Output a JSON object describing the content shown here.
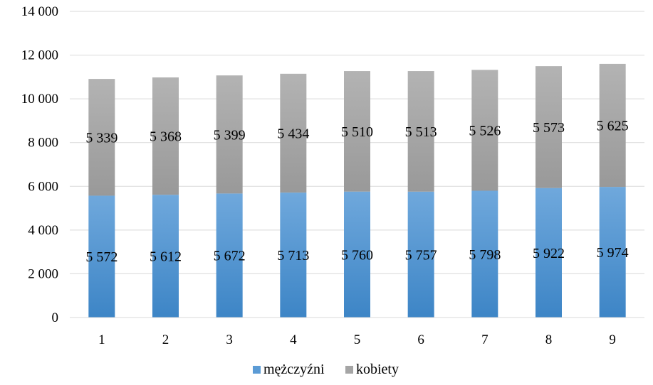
{
  "chart_data": {
    "type": "bar",
    "stacked": true,
    "categories": [
      "1",
      "2",
      "3",
      "4",
      "5",
      "6",
      "7",
      "8",
      "9"
    ],
    "series": [
      {
        "name": "mężczyźni",
        "color": "#5b9bd5",
        "values": [
          5572,
          5612,
          5672,
          5713,
          5760,
          5757,
          5798,
          5922,
          5974
        ],
        "labels": [
          "5 572",
          "5 612",
          "5 672",
          "5 713",
          "5 760",
          "5 757",
          "5 798",
          "5 922",
          "5 974"
        ]
      },
      {
        "name": "kobiety",
        "color": "#a5a5a5",
        "values": [
          5339,
          5368,
          5399,
          5434,
          5510,
          5513,
          5526,
          5573,
          5625
        ],
        "labels": [
          "5 339",
          "5 368",
          "5 399",
          "5 434",
          "5 510",
          "5 513",
          "5 526",
          "5 573",
          "5 625"
        ]
      }
    ],
    "ylim": [
      0,
      14000
    ],
    "yticks": [
      0,
      2000,
      4000,
      6000,
      8000,
      10000,
      12000,
      14000
    ],
    "ytick_labels": [
      "0",
      "2 000",
      "4 000",
      "6 000",
      "8 000",
      "10 000",
      "12 000",
      "14 000"
    ],
    "grid": true,
    "legend_position": "bottom",
    "title": "",
    "xlabel": "",
    "ylabel": ""
  }
}
